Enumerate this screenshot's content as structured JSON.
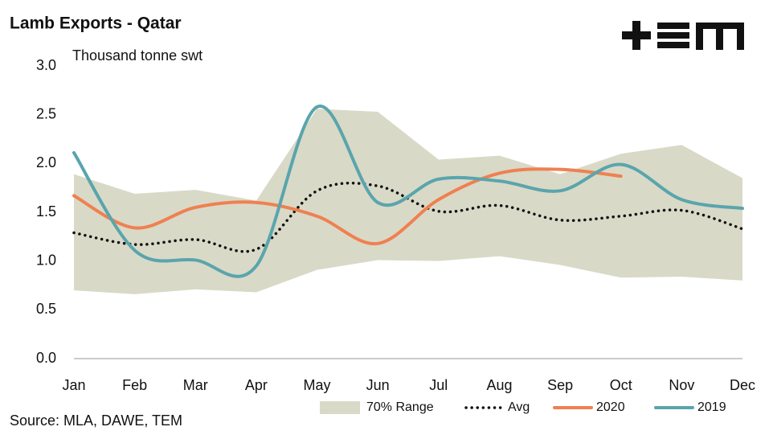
{
  "chart_data": {
    "type": "line",
    "title": "Lamb Exports - Qatar",
    "subtitle": "Thousand tonne swt",
    "source": "Source: MLA, DAWE, TEM",
    "categories": [
      "Jan",
      "Feb",
      "Mar",
      "Apr",
      "May",
      "Jun",
      "Jul",
      "Aug",
      "Sep",
      "Oct",
      "Nov",
      "Dec"
    ],
    "ylim": [
      0,
      3
    ],
    "yticks": [
      {
        "value": 0,
        "label": "0.0"
      },
      0.5,
      {
        "value": 1,
        "label": "1.0"
      },
      1.5,
      {
        "value": 2,
        "label": "2.0"
      },
      2.5,
      {
        "value": 3,
        "label": "3.0"
      }
    ],
    "range": {
      "name": "70% Range",
      "color": "#d9d9c8",
      "low": [
        0.7,
        0.66,
        0.71,
        0.68,
        0.91,
        1.01,
        1.0,
        1.05,
        0.96,
        0.83,
        0.84,
        0.8
      ],
      "high": [
        1.89,
        1.69,
        1.73,
        1.62,
        2.56,
        2.53,
        2.04,
        2.08,
        1.89,
        2.1,
        2.19,
        1.85
      ]
    },
    "series": [
      {
        "name": "Avg",
        "color": "#111111",
        "dotted": true,
        "values": [
          1.29,
          1.17,
          1.22,
          1.12,
          1.72,
          1.77,
          1.51,
          1.57,
          1.42,
          1.46,
          1.52,
          1.33
        ]
      },
      {
        "name": "2020",
        "color": "#f08050",
        "values": [
          1.67,
          1.34,
          1.55,
          1.6,
          1.46,
          1.18,
          1.63,
          1.9,
          1.94,
          1.87,
          null,
          null
        ]
      },
      {
        "name": "2019",
        "color": "#5aa5ac",
        "values": [
          2.11,
          1.11,
          1.01,
          0.95,
          2.58,
          1.6,
          1.84,
          1.82,
          1.72,
          1.99,
          1.63,
          1.54
        ]
      }
    ]
  }
}
